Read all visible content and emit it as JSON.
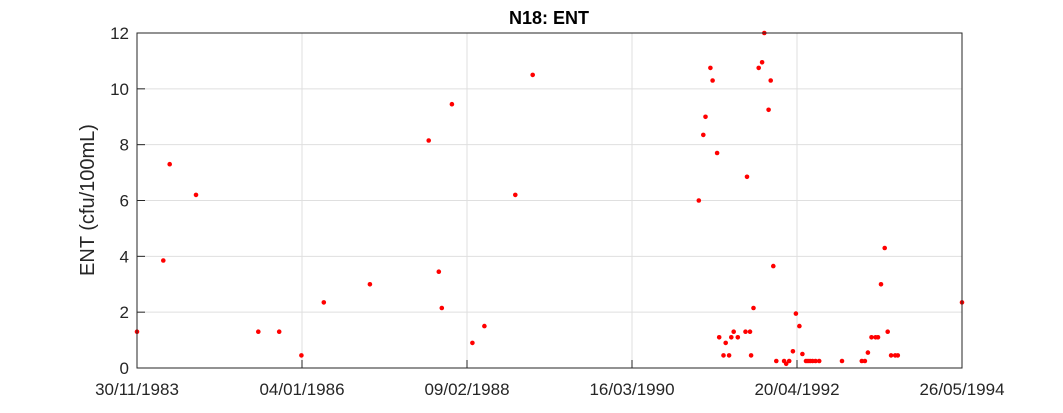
{
  "chart_data": {
    "type": "scatter",
    "title": "N18: ENT",
    "xlabel": "",
    "ylabel": "ENT (cfu/100mL)",
    "x_tick_labels": [
      "30/11/1983",
      "04/01/1986",
      "09/02/1988",
      "16/03/1990",
      "20/04/1992",
      "26/05/1994"
    ],
    "y_ticks": [
      0,
      2,
      4,
      6,
      8,
      10,
      12
    ],
    "ylim": [
      0,
      12
    ],
    "xlim": [
      "30/11/1983",
      "26/05/1994"
    ],
    "grid": true,
    "marker_color": "#ff0000",
    "series": [
      {
        "name": "ENT",
        "x": [
          "30/11/1983",
          "31/03/1984",
          "30/04/1984",
          "30/08/1984",
          "15/06/1985",
          "20/09/1985",
          "01/01/1986",
          "15/04/1986",
          "15/11/1986",
          "15/08/1987",
          "01/10/1987",
          "15/10/1987",
          "01/12/1987",
          "05/03/1988",
          "30/04/1988",
          "20/09/1988",
          "10/12/1988",
          "20/01/1991",
          "10/02/1991",
          "20/02/1991",
          "15/03/1991",
          "25/03/1991",
          "15/04/1991",
          "25/04/1991",
          "15/05/1991",
          "25/05/1991",
          "10/06/1991",
          "20/06/1991",
          "01/07/1991",
          "20/07/1991",
          "25/08/1991",
          "01/09/1991",
          "15/09/1991",
          "20/09/1991",
          "01/10/1991",
          "25/10/1991",
          "10/11/1991",
          "20/11/1991",
          "10/12/1991",
          "20/12/1991",
          "01/01/1992",
          "15/01/1992",
          "20/02/1992",
          "01/03/1992",
          "15/03/1992",
          "01/04/1992",
          "15/04/1992",
          "01/05/1992",
          "15/05/1992",
          "01/06/1992",
          "10/06/1992",
          "20/06/1992",
          "01/07/1992",
          "15/07/1992",
          "01/08/1992",
          "15/11/1992",
          "15/02/1993",
          "01/03/1993",
          "15/03/1993",
          "01/04/1993",
          "20/04/1993",
          "01/05/1993",
          "15/05/1993",
          "01/06/1993",
          "15/06/1993",
          "01/07/1993",
          "20/07/1993",
          "01/08/1993",
          "26/05/1994"
        ],
        "y": [
          1.3,
          3.85,
          7.3,
          6.2,
          1.3,
          1.3,
          0.45,
          2.35,
          3.0,
          8.15,
          3.45,
          2.15,
          9.45,
          0.9,
          1.5,
          6.2,
          10.5,
          6.0,
          8.35,
          9.0,
          10.75,
          10.3,
          7.7,
          1.1,
          0.45,
          0.9,
          0.45,
          1.1,
          1.3,
          1.1,
          1.3,
          6.85,
          1.3,
          0.45,
          2.15,
          10.75,
          10.95,
          12.05,
          9.25,
          10.3,
          3.65,
          0.25,
          0.25,
          0.15,
          0.25,
          0.6,
          1.95,
          1.5,
          0.5,
          0.25,
          0.25,
          0.25,
          0.25,
          0.25,
          0.25,
          0.25,
          0.25,
          0.25,
          0.55,
          1.1,
          1.1,
          1.1,
          3.0,
          4.3,
          1.3,
          0.45,
          0.45,
          0.45,
          2.35
        ]
      }
    ]
  }
}
